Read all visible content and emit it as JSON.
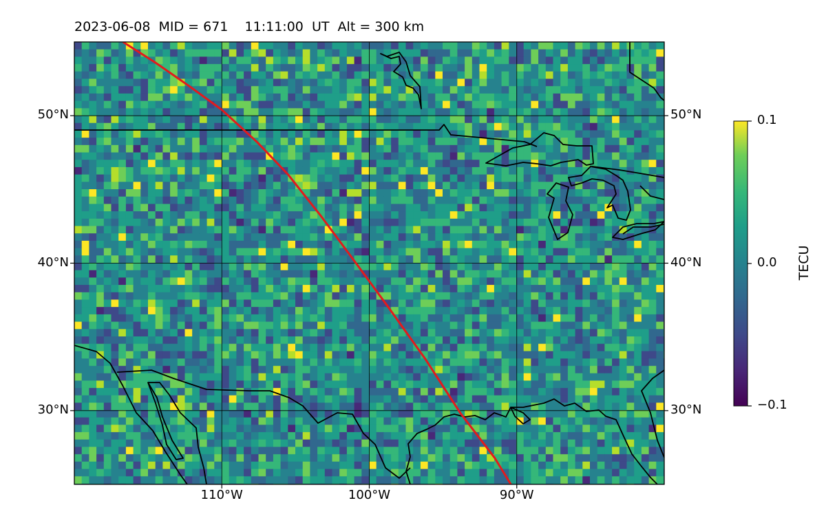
{
  "header": {
    "title": "2023-06-08  MID = 671    11:11:00  UT  Alt = 300 km"
  },
  "map": {
    "extent": {
      "lon_min": -120,
      "lon_max": -80,
      "lat_min": 25,
      "lat_max": 55
    },
    "lat_ticks": [
      {
        "value": 30,
        "label": "30°N"
      },
      {
        "value": 40,
        "label": "40°N"
      },
      {
        "value": 50,
        "label": "50°N"
      }
    ],
    "lon_ticks": [
      {
        "value": -110,
        "label": "110°W"
      },
      {
        "value": -100,
        "label": "100°W"
      },
      {
        "value": -90,
        "label": "90°W"
      }
    ],
    "grid": true,
    "track_color": "#e41a1c",
    "track_path": [
      [
        -116.7,
        55.0
      ],
      [
        -114.5,
        53.6
      ],
      [
        -112.2,
        52.0
      ],
      [
        -110.0,
        50.4
      ],
      [
        -107.6,
        48.2
      ],
      [
        -105.5,
        46.0
      ],
      [
        -103.2,
        43.1
      ],
      [
        -100.9,
        40.0
      ],
      [
        -98.7,
        37.0
      ],
      [
        -96.2,
        33.5
      ],
      [
        -93.8,
        29.8
      ],
      [
        -91.5,
        26.8
      ],
      [
        -90.4,
        25.0
      ]
    ]
  },
  "colorbar": {
    "label": "TECU",
    "vmin": -0.1,
    "vmax": 0.1,
    "ticks": [
      {
        "value": 0.1,
        "label": "0.1"
      },
      {
        "value": 0.0,
        "label": "0.0"
      },
      {
        "value": -0.1,
        "label": "−0.1"
      }
    ],
    "colormap": "viridis"
  }
}
